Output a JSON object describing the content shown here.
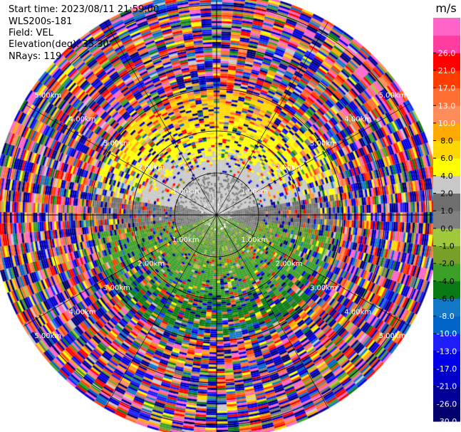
{
  "header": {
    "start_time": "Start time: 2023/08/11 21:59:00",
    "instrument": "WLS200s-181",
    "field": "Field: VEL",
    "elevation": "Elevation(deg): 35.30",
    "nrays": "NRays: 119"
  },
  "chart_data": {
    "type": "heatmap",
    "projection": "polar-ppi",
    "field": "VEL",
    "units": "m/s",
    "n_rays": 119,
    "elevation_deg": 35.3,
    "range_rings_km": [
      1.0,
      2.0,
      3.0,
      4.0,
      5.0
    ],
    "range_labels": [
      "1.00km",
      "2.00km",
      "3.00km",
      "4.00km",
      "5.00km"
    ],
    "max_range_km": 5.3,
    "color_scale": {
      "levels": [
        -30.0,
        -26.0,
        -21.0,
        -17.0,
        -13.0,
        -10.0,
        -8.0,
        -6.0,
        -4.0,
        -2.0,
        -1.0,
        0.0,
        1.0,
        2.0,
        4.0,
        6.0,
        8.0,
        10.0,
        13.0,
        17.0,
        21.0,
        26.0
      ],
      "labels": [
        "-30.0",
        "-26.0",
        "-21.0",
        "-17.0",
        "-13.0",
        "-10.0",
        "-8.0",
        "-6.0",
        "-4.0",
        "-2.0",
        "-1.0",
        "0.0",
        "1.0",
        "2.0",
        "4.0",
        "6.0",
        "8.0",
        "10.0",
        "13.0",
        "17.0",
        "21.0",
        "26.0"
      ],
      "colors": [
        "#00006e",
        "#000096",
        "#0000c8",
        "#0000e8",
        "#1e1eff",
        "#0064c8",
        "#1478c8",
        "#0a7a14",
        "#3ca028",
        "#78a028",
        "#a0c83c",
        "#808080",
        "#6e6e6e",
        "#c8c8c8",
        "#ffff00",
        "#ffd700",
        "#ffaa00",
        "#ff8c5a",
        "#ff6e32",
        "#ff3c00",
        "#ff0000",
        "#ff3ca0",
        "#ff64c8"
      ],
      "colorbar_label": "m/s"
    },
    "pattern": {
      "near_field_0_1km": "mixed 0 to 2 m/s grey/yellow, north side 2-4 m/s",
      "north_1_3km": "positive 2 to 8 m/s (yellow/orange)",
      "south_1_3km": "negative -1 to -6 m/s (green)",
      "beyond_3km": "noisy, full color range"
    },
    "grid": true,
    "legend_position": "right"
  }
}
